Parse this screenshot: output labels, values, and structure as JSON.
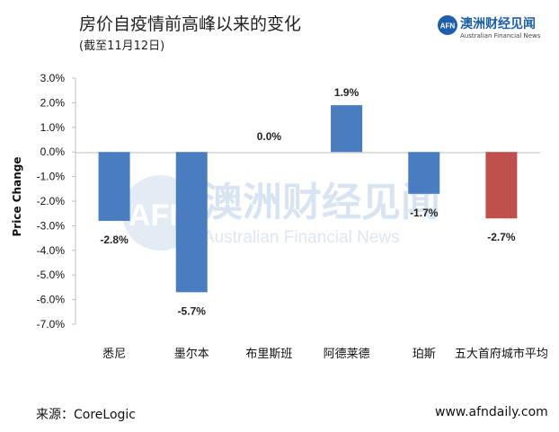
{
  "title": "房价自疫情前高峰以来的变化",
  "subtitle": "(截至11月12日)",
  "logo": {
    "name_cn": "澳洲财经见闻",
    "name_en": "Australian Financial News",
    "mark": "AFN"
  },
  "watermark": {
    "mark": "AFN",
    "cn": "澳洲财经见闻",
    "en": "Australian Financial News"
  },
  "footer": {
    "source": "来源：CoreLogic",
    "site": "www.afndaily.com"
  },
  "colors": {
    "bar": "#4a7cc0",
    "bar_highlight": "#c0504d",
    "axis": "#bfbfbf"
  },
  "chart_data": {
    "type": "bar",
    "title": "房价自疫情前高峰以来的变化",
    "subtitle": "(截至11月12日)",
    "xlabel": "",
    "ylabel": "Price Change",
    "categories": [
      "悉尼",
      "墨尔本",
      "布里斯班",
      "阿德莱德",
      "珀斯",
      "五大首府城市平均"
    ],
    "values": [
      -2.8,
      -5.7,
      0.0,
      1.9,
      -1.7,
      -2.7
    ],
    "data_labels": [
      "-2.8%",
      "-5.7%",
      "0.0%",
      "1.9%",
      "-1.7%",
      "-2.7%"
    ],
    "highlight_index": 5,
    "ylim": [
      -7.0,
      3.0
    ],
    "yticks": [
      3.0,
      2.0,
      1.0,
      0.0,
      -1.0,
      -2.0,
      -3.0,
      -4.0,
      -5.0,
      -6.0,
      -7.0
    ],
    "ytick_labels": [
      "3.0%",
      "2.0%",
      "1.0%",
      "0.0%",
      "-1.0%",
      "-2.0%",
      "-3.0%",
      "-4.0%",
      "-5.0%",
      "-6.0%",
      "-7.0%"
    ],
    "grid": false,
    "legend": "none"
  }
}
